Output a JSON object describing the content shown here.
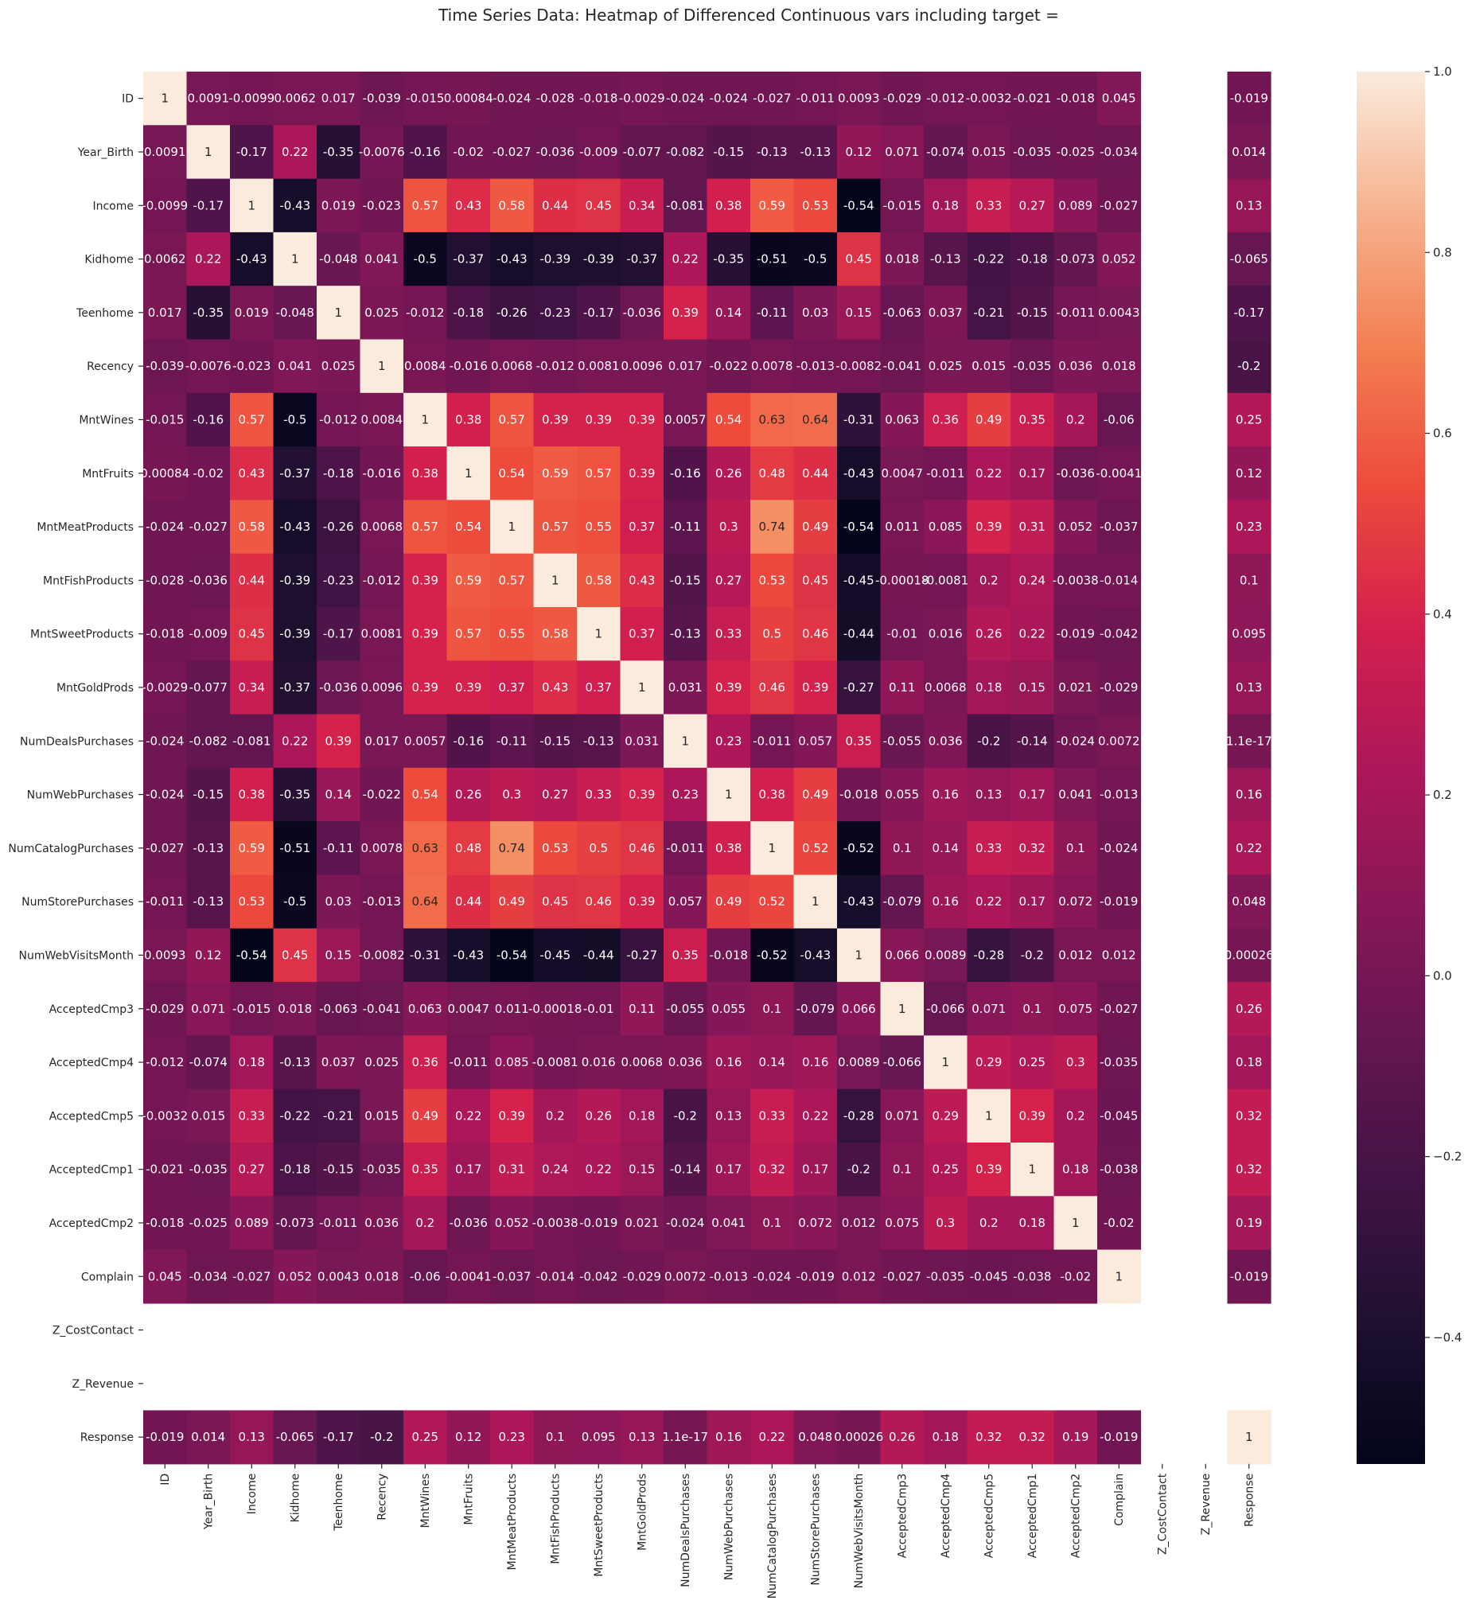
{
  "chart_data": {
    "type": "heatmap",
    "title": "Time Series Data: Heatmap of Differenced Continuous vars including target =",
    "variables": [
      "ID",
      "Year_Birth",
      "Income",
      "Kidhome",
      "Teenhome",
      "Recency",
      "MntWines",
      "MntFruits",
      "MntMeatProducts",
      "MntFishProducts",
      "MntSweetProducts",
      "MntGoldProds",
      "NumDealsPurchases",
      "NumWebPurchases",
      "NumCatalogPurchases",
      "NumStorePurchases",
      "NumWebVisitsMonth",
      "AcceptedCmp3",
      "AcceptedCmp4",
      "AcceptedCmp5",
      "AcceptedCmp1",
      "AcceptedCmp2",
      "Complain",
      "Z_CostContact",
      "Z_Revenue",
      "Response"
    ],
    "labels": [
      [
        "1",
        "0.0091",
        "-0.0099",
        "0.0062",
        "0.017",
        "-0.039",
        "-0.015",
        "0.00084",
        "-0.024",
        "-0.028",
        "-0.018",
        "-0.0029",
        "-0.024",
        "-0.024",
        "-0.027",
        "-0.011",
        "0.0093",
        "-0.029",
        "-0.012",
        "-0.0032",
        "-0.021",
        "-0.018",
        "0.045",
        "",
        "",
        "-0.019"
      ],
      [
        "0.0091",
        "1",
        "-0.17",
        "0.22",
        "-0.35",
        "-0.0076",
        "-0.16",
        "-0.02",
        "-0.027",
        "-0.036",
        "-0.009",
        "-0.077",
        "-0.082",
        "-0.15",
        "-0.13",
        "-0.13",
        "0.12",
        "0.071",
        "-0.074",
        "0.015",
        "-0.035",
        "-0.025",
        "-0.034",
        "",
        "",
        "0.014"
      ],
      [
        "-0.0099",
        "-0.17",
        "1",
        "-0.43",
        "0.019",
        "-0.023",
        "0.57",
        "0.43",
        "0.58",
        "0.44",
        "0.45",
        "0.34",
        "-0.081",
        "0.38",
        "0.59",
        "0.53",
        "-0.54",
        "-0.015",
        "0.18",
        "0.33",
        "0.27",
        "0.089",
        "-0.027",
        "",
        "",
        "0.13"
      ],
      [
        "0.0062",
        "0.22",
        "-0.43",
        "1",
        "-0.048",
        "0.041",
        "-0.5",
        "-0.37",
        "-0.43",
        "-0.39",
        "-0.39",
        "-0.37",
        "0.22",
        "-0.35",
        "-0.51",
        "-0.5",
        "0.45",
        "0.018",
        "-0.13",
        "-0.22",
        "-0.18",
        "-0.073",
        "0.052",
        "",
        "",
        "-0.065"
      ],
      [
        "0.017",
        "-0.35",
        "0.019",
        "-0.048",
        "1",
        "0.025",
        "-0.012",
        "-0.18",
        "-0.26",
        "-0.23",
        "-0.17",
        "-0.036",
        "0.39",
        "0.14",
        "-0.11",
        "0.03",
        "0.15",
        "-0.063",
        "0.037",
        "-0.21",
        "-0.15",
        "-0.011",
        "0.0043",
        "",
        "",
        "-0.17"
      ],
      [
        "-0.039",
        "-0.0076",
        "-0.023",
        "0.041",
        "0.025",
        "1",
        "0.0084",
        "-0.016",
        "0.0068",
        "-0.012",
        "0.0081",
        "0.0096",
        "0.017",
        "-0.022",
        "0.0078",
        "-0.013",
        "-0.0082",
        "-0.041",
        "0.025",
        "0.015",
        "-0.035",
        "0.036",
        "0.018",
        "",
        "",
        "-0.2"
      ],
      [
        "-0.015",
        "-0.16",
        "0.57",
        "-0.5",
        "-0.012",
        "0.0084",
        "1",
        "0.38",
        "0.57",
        "0.39",
        "0.39",
        "0.39",
        "0.0057",
        "0.54",
        "0.63",
        "0.64",
        "-0.31",
        "0.063",
        "0.36",
        "0.49",
        "0.35",
        "0.2",
        "-0.06",
        "",
        "",
        "0.25"
      ],
      [
        "0.00084",
        "-0.02",
        "0.43",
        "-0.37",
        "-0.18",
        "-0.016",
        "0.38",
        "1",
        "0.54",
        "0.59",
        "0.57",
        "0.39",
        "-0.16",
        "0.26",
        "0.48",
        "0.44",
        "-0.43",
        "0.0047",
        "-0.011",
        "0.22",
        "0.17",
        "-0.036",
        "-0.0041",
        "",
        "",
        "0.12"
      ],
      [
        "-0.024",
        "-0.027",
        "0.58",
        "-0.43",
        "-0.26",
        "0.0068",
        "0.57",
        "0.54",
        "1",
        "0.57",
        "0.55",
        "0.37",
        "-0.11",
        "0.3",
        "0.74",
        "0.49",
        "-0.54",
        "0.011",
        "0.085",
        "0.39",
        "0.31",
        "0.052",
        "-0.037",
        "",
        "",
        "0.23"
      ],
      [
        "-0.028",
        "-0.036",
        "0.44",
        "-0.39",
        "-0.23",
        "-0.012",
        "0.39",
        "0.59",
        "0.57",
        "1",
        "0.58",
        "0.43",
        "-0.15",
        "0.27",
        "0.53",
        "0.45",
        "-0.45",
        "-0.00018",
        "-0.0081",
        "0.2",
        "0.24",
        "-0.0038",
        "-0.014",
        "",
        "",
        "0.1"
      ],
      [
        "-0.018",
        "-0.009",
        "0.45",
        "-0.39",
        "-0.17",
        "0.0081",
        "0.39",
        "0.57",
        "0.55",
        "0.58",
        "1",
        "0.37",
        "-0.13",
        "0.33",
        "0.5",
        "0.46",
        "-0.44",
        "-0.01",
        "0.016",
        "0.26",
        "0.22",
        "-0.019",
        "-0.042",
        "",
        "",
        "0.095"
      ],
      [
        "-0.0029",
        "-0.077",
        "0.34",
        "-0.37",
        "-0.036",
        "0.0096",
        "0.39",
        "0.39",
        "0.37",
        "0.43",
        "0.37",
        "1",
        "0.031",
        "0.39",
        "0.46",
        "0.39",
        "-0.27",
        "0.11",
        "0.0068",
        "0.18",
        "0.15",
        "0.021",
        "-0.029",
        "",
        "",
        "0.13"
      ],
      [
        "-0.024",
        "-0.082",
        "-0.081",
        "0.22",
        "0.39",
        "0.017",
        "0.0057",
        "-0.16",
        "-0.11",
        "-0.15",
        "-0.13",
        "0.031",
        "1",
        "0.23",
        "-0.011",
        "0.057",
        "0.35",
        "-0.055",
        "0.036",
        "-0.2",
        "-0.14",
        "-0.024",
        "0.0072",
        "",
        "",
        "1.1e-17"
      ],
      [
        "-0.024",
        "-0.15",
        "0.38",
        "-0.35",
        "0.14",
        "-0.022",
        "0.54",
        "0.26",
        "0.3",
        "0.27",
        "0.33",
        "0.39",
        "0.23",
        "1",
        "0.38",
        "0.49",
        "-0.018",
        "0.055",
        "0.16",
        "0.13",
        "0.17",
        "0.041",
        "-0.013",
        "",
        "",
        "0.16"
      ],
      [
        "-0.027",
        "-0.13",
        "0.59",
        "-0.51",
        "-0.11",
        "0.0078",
        "0.63",
        "0.48",
        "0.74",
        "0.53",
        "0.5",
        "0.46",
        "-0.011",
        "0.38",
        "1",
        "0.52",
        "-0.52",
        "0.1",
        "0.14",
        "0.33",
        "0.32",
        "0.1",
        "-0.024",
        "",
        "",
        "0.22"
      ],
      [
        "-0.011",
        "-0.13",
        "0.53",
        "-0.5",
        "0.03",
        "-0.013",
        "0.64",
        "0.44",
        "0.49",
        "0.45",
        "0.46",
        "0.39",
        "0.057",
        "0.49",
        "0.52",
        "1",
        "-0.43",
        "-0.079",
        "0.16",
        "0.22",
        "0.17",
        "0.072",
        "-0.019",
        "",
        "",
        "0.048"
      ],
      [
        "0.0093",
        "0.12",
        "-0.54",
        "0.45",
        "0.15",
        "-0.0082",
        "-0.31",
        "-0.43",
        "-0.54",
        "-0.45",
        "-0.44",
        "-0.27",
        "0.35",
        "-0.018",
        "-0.52",
        "-0.43",
        "1",
        "0.066",
        "0.0089",
        "-0.28",
        "-0.2",
        "0.012",
        "0.012",
        "",
        "",
        "0.00026"
      ],
      [
        "-0.029",
        "0.071",
        "-0.015",
        "0.018",
        "-0.063",
        "-0.041",
        "0.063",
        "0.0047",
        "0.011",
        "-0.00018",
        "-0.01",
        "0.11",
        "-0.055",
        "0.055",
        "0.1",
        "-0.079",
        "0.066",
        "1",
        "-0.066",
        "0.071",
        "0.1",
        "0.075",
        "-0.027",
        "",
        "",
        "0.26"
      ],
      [
        "-0.012",
        "-0.074",
        "0.18",
        "-0.13",
        "0.037",
        "0.025",
        "0.36",
        "-0.011",
        "0.085",
        "-0.0081",
        "0.016",
        "0.0068",
        "0.036",
        "0.16",
        "0.14",
        "0.16",
        "0.0089",
        "-0.066",
        "1",
        "0.29",
        "0.25",
        "0.3",
        "-0.035",
        "",
        "",
        "0.18"
      ],
      [
        "-0.0032",
        "0.015",
        "0.33",
        "-0.22",
        "-0.21",
        "0.015",
        "0.49",
        "0.22",
        "0.39",
        "0.2",
        "0.26",
        "0.18",
        "-0.2",
        "0.13",
        "0.33",
        "0.22",
        "-0.28",
        "0.071",
        "0.29",
        "1",
        "0.39",
        "0.2",
        "-0.045",
        "",
        "",
        "0.32"
      ],
      [
        "-0.021",
        "-0.035",
        "0.27",
        "-0.18",
        "-0.15",
        "-0.035",
        "0.35",
        "0.17",
        "0.31",
        "0.24",
        "0.22",
        "0.15",
        "-0.14",
        "0.17",
        "0.32",
        "0.17",
        "-0.2",
        "0.1",
        "0.25",
        "0.39",
        "1",
        "0.18",
        "-0.038",
        "",
        "",
        "0.32"
      ],
      [
        "-0.018",
        "-0.025",
        "0.089",
        "-0.073",
        "-0.011",
        "0.036",
        "0.2",
        "-0.036",
        "0.052",
        "-0.0038",
        "-0.019",
        "0.021",
        "-0.024",
        "0.041",
        "0.1",
        "0.072",
        "0.012",
        "0.075",
        "0.3",
        "0.2",
        "0.18",
        "1",
        "-0.02",
        "",
        "",
        "0.19"
      ],
      [
        "0.045",
        "-0.034",
        "-0.027",
        "0.052",
        "0.0043",
        "0.018",
        "-0.06",
        "-0.0041",
        "-0.037",
        "-0.014",
        "-0.042",
        "-0.029",
        "0.0072",
        "-0.013",
        "-0.024",
        "-0.019",
        "0.012",
        "-0.027",
        "-0.035",
        "-0.045",
        "-0.038",
        "-0.02",
        "1",
        "",
        "",
        "-0.019"
      ],
      [
        "",
        "",
        "",
        "",
        "",
        "",
        "",
        "",
        "",
        "",
        "",
        "",
        "",
        "",
        "",
        "",
        "",
        "",
        "",
        "",
        "",
        "",
        "",
        "",
        "",
        ""
      ],
      [
        "",
        "",
        "",
        "",
        "",
        "",
        "",
        "",
        "",
        "",
        "",
        "",
        "",
        "",
        "",
        "",
        "",
        "",
        "",
        "",
        "",
        "",
        "",
        "",
        "",
        ""
      ],
      [
        "-0.019",
        "0.014",
        "0.13",
        "-0.065",
        "-0.17",
        "-0.2",
        "0.25",
        "0.12",
        "0.23",
        "0.1",
        "0.095",
        "0.13",
        "1.1e-17",
        "0.16",
        "0.22",
        "0.048",
        "0.00026",
        "0.26",
        "0.18",
        "0.32",
        "0.32",
        "0.19",
        "-0.019",
        "",
        "",
        "1"
      ]
    ],
    "colorbar": {
      "min": -0.54,
      "max": 1.0,
      "ticks": [
        1.0,
        0.8,
        0.6,
        0.4,
        0.2,
        0.0,
        -0.2,
        -0.4
      ],
      "tick_labels": [
        "1.0",
        "0.8",
        "0.6",
        "0.4",
        "0.2",
        "0.0",
        "−0.2",
        "−0.4"
      ],
      "colormap": "rocket"
    },
    "nan_color": "#ffffff"
  }
}
